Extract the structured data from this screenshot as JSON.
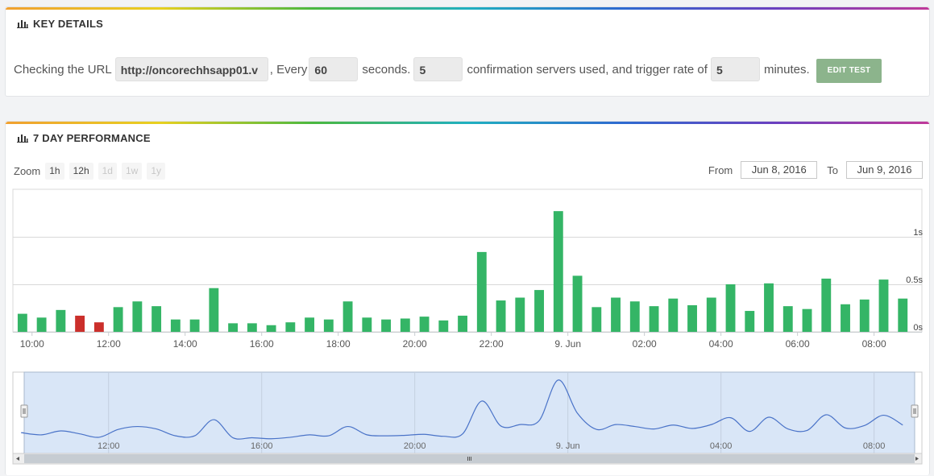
{
  "key_details": {
    "title": "KEY DETAILS",
    "text_checking": "Checking the URL",
    "url_value": "http://oncorechhsapp01.v",
    "text_every": ", Every",
    "interval_value": "60",
    "text_seconds": "seconds.",
    "servers_value": "5",
    "text_servers": "confirmation servers used, and trigger rate of",
    "trigger_value": "5",
    "text_minutes": "minutes.",
    "edit_button": "EDIT TEST"
  },
  "performance": {
    "title": "7 DAY PERFORMANCE",
    "zoom_label": "Zoom",
    "zoom_options": [
      {
        "label": "1h",
        "enabled": true
      },
      {
        "label": "12h",
        "enabled": true
      },
      {
        "label": "1d",
        "enabled": false
      },
      {
        "label": "1w",
        "enabled": false
      },
      {
        "label": "1y",
        "enabled": false
      }
    ],
    "from_label": "From",
    "from_value": "Jun 8, 2016",
    "to_label": "To",
    "to_value": "Jun 9, 2016"
  },
  "chart_data": {
    "type": "bar",
    "title": "",
    "xlabel": "",
    "ylabel": "",
    "ylim": [
      0,
      1.5
    ],
    "y_ticks": [
      {
        "label": "0s",
        "value": 0
      },
      {
        "label": "0.5s",
        "value": 0.5
      },
      {
        "label": "1s",
        "value": 1
      }
    ],
    "x_ticks": [
      "10:00",
      "12:00",
      "14:00",
      "16:00",
      "18:00",
      "20:00",
      "22:00",
      "9. Jun",
      "02:00",
      "04:00",
      "06:00",
      "08:00"
    ],
    "x_tick_hours": [
      10,
      12,
      14,
      16,
      18,
      20,
      22,
      24,
      26,
      28,
      30,
      32
    ],
    "x_range_hours": [
      9.5,
      33.25
    ],
    "bar_start_hour": 9.75,
    "bar_step_hours": 0.5,
    "values": [
      0.19,
      0.15,
      0.23,
      0.17,
      0.1,
      0.26,
      0.32,
      0.27,
      0.13,
      0.13,
      0.46,
      0.09,
      0.09,
      0.07,
      0.1,
      0.15,
      0.13,
      0.32,
      0.15,
      0.13,
      0.14,
      0.16,
      0.12,
      0.17,
      0.84,
      0.33,
      0.36,
      0.44,
      1.27,
      0.59,
      0.26,
      0.36,
      0.32,
      0.27,
      0.35,
      0.28,
      0.36,
      0.5,
      0.22,
      0.51,
      0.27,
      0.24,
      0.56,
      0.29,
      0.34,
      0.55,
      0.35
    ],
    "bar_colors": {
      "ok": "#34b566",
      "fail": "#cb2f2b"
    },
    "failed_indices": [
      3,
      4
    ],
    "navigator": {
      "x_ticks": [
        "12:00",
        "16:00",
        "20:00",
        "9. Jun",
        "04:00",
        "08:00"
      ],
      "x_tick_hours": [
        12,
        16,
        20,
        24,
        28,
        32
      ],
      "line_color": "#4a73c8"
    }
  }
}
